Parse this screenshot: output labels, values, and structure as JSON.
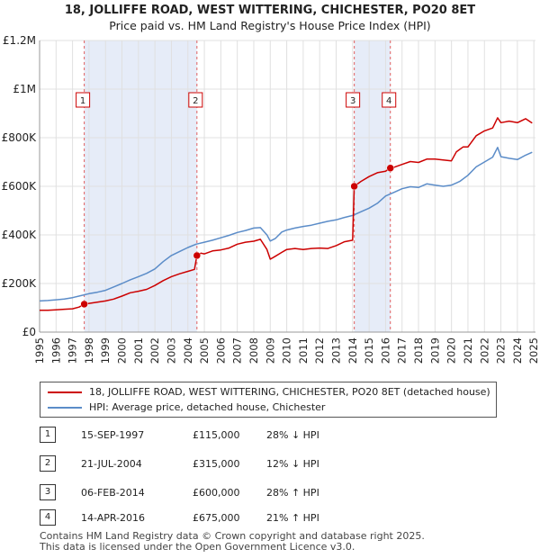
{
  "chart_data": {
    "type": "line",
    "title": "18, JOLLIFFE ROAD, WEST WITTERING, CHICHESTER, PO20 8ET",
    "subtitle": "Price paid vs. HM Land Registry's House Price Index (HPI)",
    "xlabel": "",
    "ylabel": "",
    "xlim": [
      1995.0,
      2025.1
    ],
    "ylim": [
      0,
      1200000
    ],
    "grid": true,
    "x_ticks": [
      1995,
      1996,
      1997,
      1998,
      1999,
      2000,
      2001,
      2002,
      2003,
      2004,
      2005,
      2006,
      2007,
      2008,
      2009,
      2010,
      2011,
      2012,
      2013,
      2014,
      2015,
      2016,
      2017,
      2018,
      2019,
      2020,
      2021,
      2022,
      2023,
      2024,
      2025
    ],
    "x_tick_labels": [
      "1995",
      "1996",
      "1997",
      "1998",
      "1999",
      "2000",
      "2001",
      "2002",
      "2003",
      "2004",
      "2005",
      "2006",
      "2007",
      "2008",
      "2009",
      "2010",
      "2011",
      "2012",
      "2013",
      "2014",
      "2015",
      "2016",
      "2017",
      "2018",
      "2019",
      "2020",
      "2021",
      "2022",
      "2023",
      "2024",
      "2025"
    ],
    "y_ticks": [
      0,
      200000,
      400000,
      600000,
      800000,
      1000000,
      1200000
    ],
    "y_tick_labels": [
      "£0",
      "£200K",
      "£400K",
      "£600K",
      "£800K",
      "£1M",
      "£1.2M"
    ],
    "shaded_ranges": [
      [
        1997.71,
        2004.55
      ],
      [
        2014.1,
        2016.29
      ]
    ],
    "series": [
      {
        "name": "18, JOLLIFFE ROAD, WEST WITTERING, CHICHESTER, PO20 8ET (detached house)",
        "color": "#cc0000",
        "x": [
          1995.0,
          1995.5,
          1996.0,
          1996.5,
          1997.0,
          1997.4,
          1997.71,
          1998.0,
          1998.5,
          1999.0,
          1999.5,
          2000.0,
          2000.5,
          2001.0,
          2001.5,
          2002.0,
          2002.5,
          2003.0,
          2003.5,
          2004.0,
          2004.4,
          2004.55,
          2004.8,
          2005.0,
          2005.5,
          2006.0,
          2006.5,
          2007.0,
          2007.5,
          2008.0,
          2008.4,
          2008.8,
          2009.0,
          2009.3,
          2009.7,
          2010.0,
          2010.5,
          2011.0,
          2011.5,
          2012.0,
          2012.5,
          2013.0,
          2013.5,
          2014.0,
          2014.1,
          2014.5,
          2015.0,
          2015.5,
          2016.0,
          2016.29,
          2016.5,
          2017.0,
          2017.5,
          2018.0,
          2018.5,
          2019.0,
          2019.5,
          2020.0,
          2020.3,
          2020.7,
          2021.0,
          2021.5,
          2022.0,
          2022.5,
          2022.8,
          2023.0,
          2023.5,
          2024.0,
          2024.5,
          2024.9
        ],
        "values": [
          90000,
          90000,
          92000,
          94000,
          96000,
          103000,
          115000,
          118000,
          123000,
          128000,
          136000,
          148000,
          162000,
          168000,
          176000,
          192000,
          212000,
          228000,
          240000,
          250000,
          258000,
          315000,
          325000,
          322000,
          334000,
          338000,
          346000,
          362000,
          370000,
          374000,
          382000,
          340000,
          300000,
          312000,
          328000,
          340000,
          344000,
          340000,
          344000,
          346000,
          344000,
          356000,
          372000,
          378000,
          600000,
          620000,
          640000,
          656000,
          662000,
          675000,
          678000,
          690000,
          702000,
          698000,
          712000,
          712000,
          708000,
          705000,
          742000,
          762000,
          762000,
          808000,
          828000,
          840000,
          882000,
          862000,
          868000,
          862000,
          878000,
          860000
        ]
      },
      {
        "name": "HPI: Average price, detached house, Chichester",
        "color": "#5b8cc8",
        "x": [
          1995.0,
          1995.5,
          1996.0,
          1996.5,
          1997.0,
          1997.5,
          1998.0,
          1998.5,
          1999.0,
          1999.5,
          2000.0,
          2000.5,
          2001.0,
          2001.5,
          2002.0,
          2002.5,
          2003.0,
          2003.5,
          2004.0,
          2004.5,
          2005.0,
          2005.5,
          2006.0,
          2006.5,
          2007.0,
          2007.5,
          2008.0,
          2008.4,
          2008.8,
          2009.0,
          2009.3,
          2009.7,
          2010.0,
          2010.5,
          2011.0,
          2011.5,
          2012.0,
          2012.5,
          2013.0,
          2013.5,
          2014.0,
          2014.5,
          2015.0,
          2015.5,
          2016.0,
          2016.5,
          2017.0,
          2017.5,
          2018.0,
          2018.5,
          2019.0,
          2019.5,
          2020.0,
          2020.5,
          2021.0,
          2021.5,
          2022.0,
          2022.5,
          2022.8,
          2023.0,
          2023.5,
          2024.0,
          2024.5,
          2024.9
        ],
        "values": [
          128000,
          130000,
          133000,
          136000,
          142000,
          150000,
          158000,
          164000,
          172000,
          186000,
          200000,
          215000,
          228000,
          242000,
          260000,
          290000,
          315000,
          332000,
          348000,
          362000,
          370000,
          378000,
          388000,
          398000,
          410000,
          418000,
          428000,
          430000,
          400000,
          375000,
          385000,
          412000,
          420000,
          428000,
          435000,
          440000,
          448000,
          456000,
          462000,
          472000,
          480000,
          495000,
          510000,
          530000,
          560000,
          575000,
          590000,
          598000,
          595000,
          610000,
          605000,
          600000,
          605000,
          620000,
          645000,
          680000,
          700000,
          720000,
          760000,
          722000,
          715000,
          710000,
          728000,
          740000
        ]
      }
    ],
    "sale_markers": [
      {
        "label": "1",
        "x": 1997.71,
        "value": 115000
      },
      {
        "label": "2",
        "x": 2004.55,
        "value": 315000
      },
      {
        "label": "3",
        "x": 2014.1,
        "value": 600000
      },
      {
        "label": "4",
        "x": 2016.29,
        "value": 675000
      }
    ]
  },
  "legend": {
    "property_label": "18, JOLLIFFE ROAD, WEST WITTERING, CHICHESTER, PO20 8ET (detached house)",
    "hpi_label": "HPI: Average price, detached house, Chichester"
  },
  "sales": [
    {
      "num": "1",
      "date": "15-SEP-1997",
      "price": "£115,000",
      "hpi": "28% ↓ HPI"
    },
    {
      "num": "2",
      "date": "21-JUL-2004",
      "price": "£315,000",
      "hpi": "12% ↓ HPI"
    },
    {
      "num": "3",
      "date": "06-FEB-2014",
      "price": "£600,000",
      "hpi": "28% ↑ HPI"
    },
    {
      "num": "4",
      "date": "14-APR-2016",
      "price": "£675,000",
      "hpi": "21% ↑ HPI"
    }
  ],
  "footer": {
    "line1": "Contains HM Land Registry data © Crown copyright and database right 2025.",
    "line2": "This data is licensed under the Open Government Licence v3.0."
  }
}
